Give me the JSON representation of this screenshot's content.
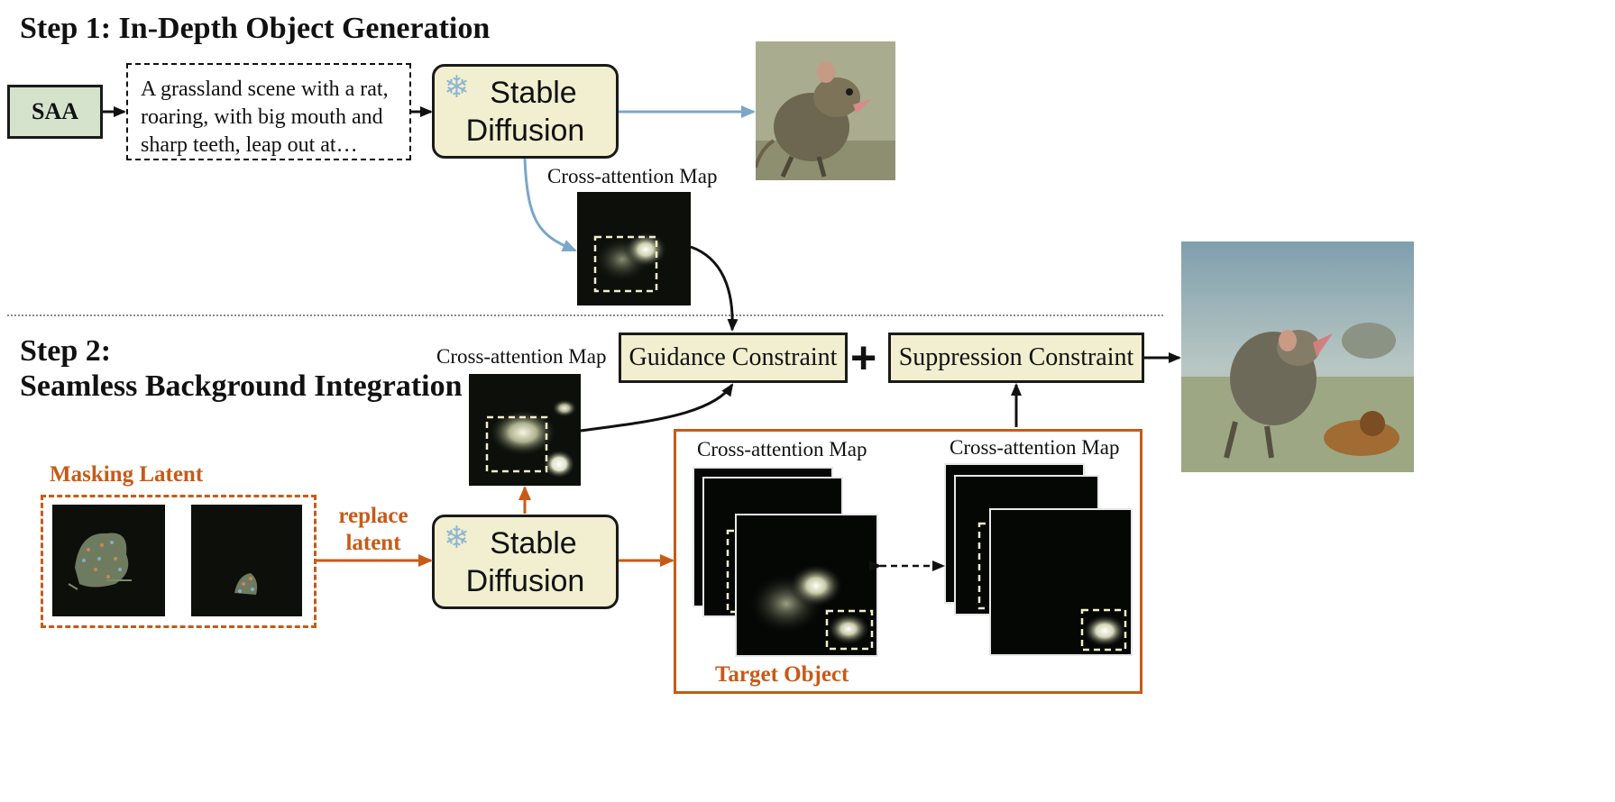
{
  "step1": {
    "title": "Step 1: In-Depth Object Generation"
  },
  "step2": {
    "title_line1": "Step 2:",
    "title_line2": "Seamless Background Integration"
  },
  "saa": {
    "label": "SAA"
  },
  "prompt": {
    "text": "A grassland scene with a rat, roaring, with big mouth and sharp teeth, leap out at…"
  },
  "stable_diffusion": {
    "line1": "Stable",
    "line2": "Diffusion"
  },
  "labels": {
    "cross_attention_map": "Cross-attention Map",
    "masking_latent": "Masking Latent",
    "replace": "replace",
    "latent": "latent",
    "target_object": "Target Object"
  },
  "constraints": {
    "guidance": "Guidance Constraint",
    "plus": "+",
    "suppression": "Suppression Constraint"
  },
  "icons": {
    "frozen": "snowflake-icon"
  },
  "colors": {
    "cream": "#f1efcf",
    "saa": "#d5e3cc",
    "orange": "#c85a16",
    "blue_arrow": "#7ba7c8"
  }
}
